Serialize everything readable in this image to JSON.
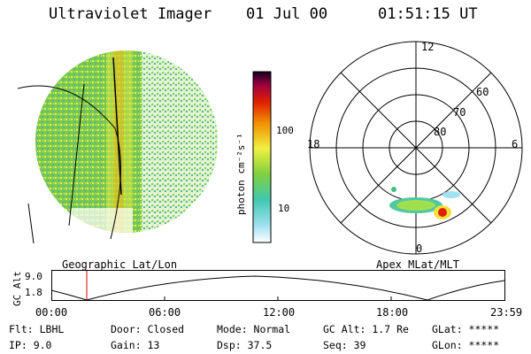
{
  "header": {
    "instrument": "Ultraviolet Imager",
    "date": "01 Jul 00",
    "time": "01:51:15 UT"
  },
  "colorbar": {
    "unit_label": "photon cm⁻²s⁻¹",
    "ticks": [
      "100",
      "10"
    ]
  },
  "left_panel": {
    "caption": "Geographic Lat/Lon"
  },
  "right_panel": {
    "caption": "Apex MLat/MLT",
    "mlt_labels": {
      "top": "12",
      "left": "18",
      "right": "6",
      "bottom": "0"
    },
    "lat_labels": [
      "60",
      "70",
      "80"
    ]
  },
  "altitude_plot": {
    "ylabel": "GC Alt",
    "yticks": [
      "9.0",
      "1.8"
    ],
    "xticks": [
      "00:00",
      "06:00",
      "12:00",
      "18:00",
      "23:59"
    ],
    "marker_time": "01:51"
  },
  "info": {
    "flt": "Flt: LBHL",
    "ip": "IP:  9.0",
    "door": "Door: Closed",
    "gain": "Gain: 13",
    "mode": "Mode: Normal",
    "dsp": "Dsp:   37.5",
    "gc_alt": "GC Alt: 1.7 Re",
    "seq": "Seq: 39",
    "glat": "GLat: *****",
    "glon": "GLon: *****"
  }
}
